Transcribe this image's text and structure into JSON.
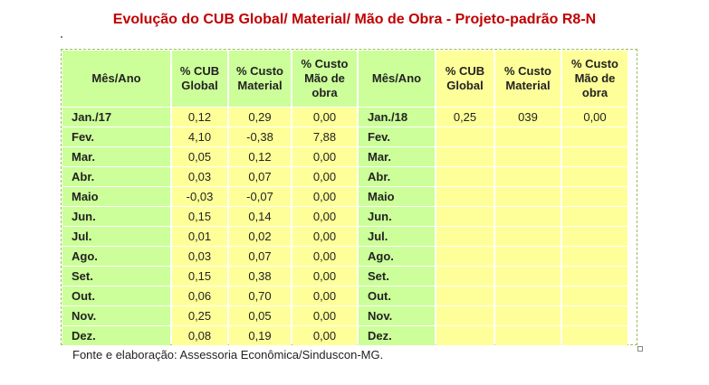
{
  "title": "Evolução do CUB Global/ Material/ Mão de Obra - Projeto-padrão R8-N",
  "headers_left": [
    "Mês/Ano",
    "% CUB Global",
    "% Custo Material",
    "% Custo Mão de obra"
  ],
  "headers_right": [
    "Mês/Ano",
    "% CUB Global",
    "% Custo Material",
    "% Custo Mão de obra"
  ],
  "rows": [
    [
      "Jan./17",
      "0,12",
      "0,29",
      "0,00",
      "Jan./18",
      "0,25",
      "039",
      "0,00"
    ],
    [
      "Fev.",
      "4,10",
      "-0,38",
      "7,88",
      "Fev.",
      "",
      "",
      ""
    ],
    [
      "Mar.",
      "0,05",
      "0,12",
      "0,00",
      "Mar.",
      "",
      "",
      ""
    ],
    [
      "Abr.",
      "0,03",
      "0,07",
      "0,00",
      "Abr.",
      "",
      "",
      ""
    ],
    [
      "Maio",
      "-0,03",
      "-0,07",
      "0,00",
      "Maio",
      "",
      "",
      ""
    ],
    [
      "Jun.",
      "0,15",
      "0,14",
      "0,00",
      "Jun.",
      "",
      "",
      ""
    ],
    [
      "Jul.",
      "0,01",
      "0,02",
      "0,00",
      "Jul.",
      "",
      "",
      ""
    ],
    [
      "Ago.",
      "0,03",
      "0,07",
      "0,00",
      "Ago.",
      "",
      "",
      ""
    ],
    [
      "Set.",
      "0,15",
      "0,38",
      "0,00",
      "Set.",
      "",
      "",
      ""
    ],
    [
      "Out.",
      "0,06",
      "0,70",
      "0,00",
      "Out.",
      "",
      "",
      ""
    ],
    [
      "Nov.",
      "0,25",
      "0,05",
      "0,00",
      "Nov.",
      "",
      "",
      ""
    ],
    [
      "Dez.",
      "0,08",
      "0,19",
      "0,00",
      "Dez.",
      "",
      "",
      ""
    ]
  ],
  "source": "Fonte e elaboração: Assessoria Econômica/Sinduscon-MG.",
  "colors": {
    "title": "#c00000",
    "green_cell": "#ccff99",
    "yellow_cell": "#ffff99",
    "frame": "#9bbb59"
  }
}
